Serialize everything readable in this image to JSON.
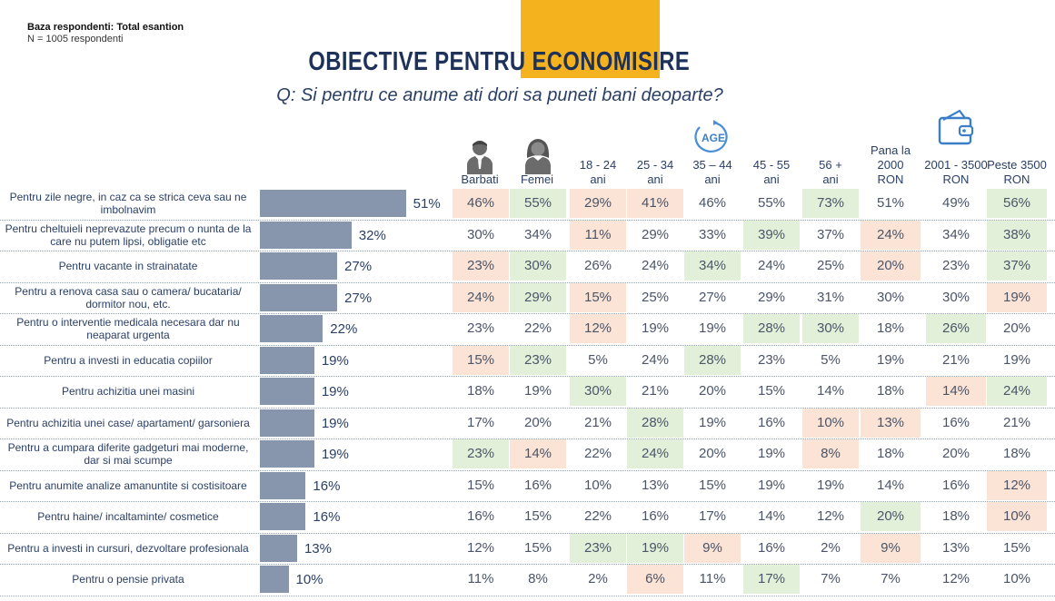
{
  "base": {
    "line1": "Baza respondenti: Total esantion",
    "line2": "N = 1005 respondenti"
  },
  "title": "OBIECTIVE PENTRU ECONOMISIRE",
  "subtitle": "Q: Si pentru ce anume ati dori sa puneti bani deoparte?",
  "icons": {
    "men": "man-icon",
    "women": "woman-icon",
    "age": "age-icon",
    "income": "wallet-icon"
  },
  "age_icon_text": "AGE",
  "colors": {
    "bar": "#8896ad",
    "above": "#e3f0d9",
    "below": "#fbe3d6",
    "title_box": "#f5b21f",
    "title": "#1e3158"
  },
  "columns": [
    {
      "label": "Barbati"
    },
    {
      "label": "Femei"
    },
    {
      "label": "18 - 24 ani"
    },
    {
      "label": "25 - 34 ani"
    },
    {
      "label": "35 – 44 ani"
    },
    {
      "label": "45 - 55 ani"
    },
    {
      "label": "56 + ani"
    },
    {
      "label": "Pana la 2000 RON"
    },
    {
      "label": "2001 - 3500 RON"
    },
    {
      "label": "Peste 3500 RON"
    }
  ],
  "chart_data": {
    "type": "bar",
    "orientation": "horizontal",
    "title": "OBIECTIVE PENTRU ECONOMISIRE",
    "unit": "%",
    "categories": [
      "Pentru zile negre, in caz ca se strica ceva sau ne imbolnavim",
      "Pentru cheltuieli neprevazute precum o nunta de la care nu putem lipsi, obligatie etc",
      "Pentru vacante in strainatate",
      "Pentru a renova casa sau o camera/ bucataria/ dormitor nou, etc.",
      "Pentru o interventie medicala necesara dar nu neaparat urgenta",
      "Pentru a investi in educatia copiilor",
      "Pentru achizitia unei masini",
      "Pentru achizitia unei case/ apartament/ garsoniera",
      "Pentru a cumpara diferite gadgeturi mai moderne, dar si mai scumpe",
      "Pentru anumite analize amanuntite si costisitoare",
      "Pentru haine/ incaltaminte/ cosmetice",
      "Pentru a investi in cursuri, dezvoltare profesionala",
      "Pentru o pensie privata"
    ],
    "values": [
      51,
      32,
      27,
      27,
      22,
      19,
      19,
      19,
      19,
      16,
      16,
      13,
      10
    ],
    "table": [
      [
        46,
        55,
        29,
        41,
        46,
        55,
        73,
        51,
        49,
        56
      ],
      [
        30,
        34,
        11,
        29,
        33,
        39,
        37,
        24,
        34,
        38
      ],
      [
        23,
        30,
        26,
        24,
        34,
        24,
        25,
        20,
        23,
        37
      ],
      [
        24,
        29,
        15,
        25,
        27,
        29,
        31,
        30,
        30,
        19
      ],
      [
        23,
        22,
        12,
        19,
        19,
        28,
        30,
        18,
        26,
        20
      ],
      [
        15,
        23,
        5,
        24,
        28,
        23,
        5,
        19,
        21,
        19
      ],
      [
        18,
        19,
        30,
        21,
        20,
        15,
        14,
        18,
        14,
        24
      ],
      [
        17,
        20,
        21,
        28,
        19,
        16,
        10,
        13,
        16,
        21
      ],
      [
        23,
        14,
        22,
        24,
        20,
        19,
        8,
        18,
        20,
        18
      ],
      [
        15,
        16,
        10,
        13,
        15,
        19,
        19,
        14,
        16,
        12
      ],
      [
        16,
        15,
        22,
        16,
        17,
        14,
        12,
        20,
        18,
        10
      ],
      [
        12,
        15,
        23,
        19,
        9,
        16,
        2,
        9,
        13,
        15
      ],
      [
        11,
        8,
        2,
        6,
        11,
        17,
        7,
        7,
        12,
        10
      ]
    ],
    "highlight": [
      [
        "red",
        "green",
        "red",
        "red",
        "",
        "",
        "green",
        "",
        "",
        "green"
      ],
      [
        "",
        "",
        "red",
        "",
        "",
        "green",
        "",
        "red",
        "",
        "green"
      ],
      [
        "red",
        "green",
        "",
        "",
        "green",
        "",
        "",
        "red",
        "",
        "green"
      ],
      [
        "red",
        "green",
        "red",
        "",
        "",
        "",
        "",
        "",
        "",
        "red"
      ],
      [
        "",
        "",
        "red",
        "",
        "",
        "green",
        "green",
        "",
        "green",
        ""
      ],
      [
        "red",
        "green",
        "",
        "",
        "green",
        "",
        "",
        "",
        "",
        ""
      ],
      [
        "",
        "",
        "green",
        "",
        "",
        "",
        "",
        "",
        "red",
        "green"
      ],
      [
        "",
        "",
        "",
        "green",
        "",
        "",
        "red",
        "red",
        "",
        ""
      ],
      [
        "green",
        "red",
        "",
        "green",
        "",
        "",
        "red",
        "",
        "",
        ""
      ],
      [
        "",
        "",
        "",
        "",
        "",
        "",
        "",
        "",
        "",
        "red"
      ],
      [
        "",
        "",
        "",
        "",
        "",
        "",
        "",
        "green",
        "",
        "red"
      ],
      [
        "",
        "",
        "green",
        "green",
        "red",
        "",
        "",
        "red",
        "",
        ""
      ],
      [
        "",
        "",
        "",
        "red",
        "",
        "green",
        "",
        "",
        "",
        ""
      ]
    ]
  }
}
